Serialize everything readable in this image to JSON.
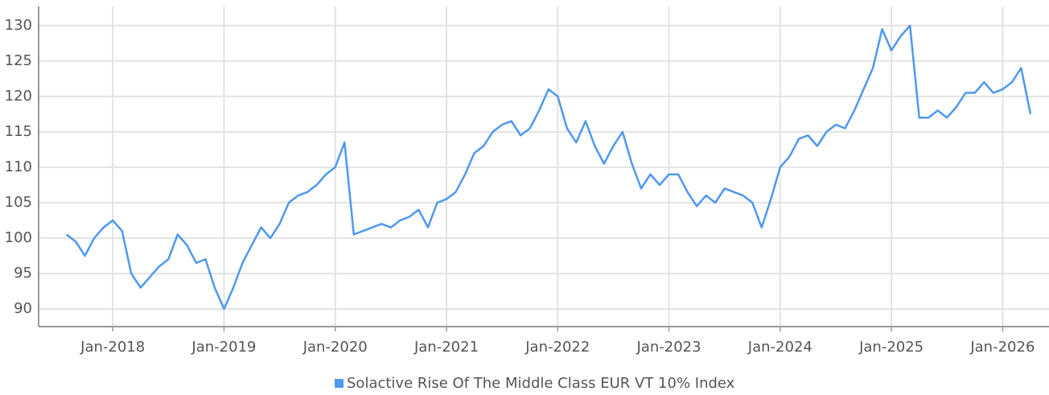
{
  "chart_data": {
    "type": "line",
    "x": [
      "2017-08",
      "2017-09",
      "2017-10",
      "2017-11",
      "2017-12",
      "2018-01",
      "2018-02",
      "2018-03",
      "2018-04",
      "2018-05",
      "2018-06",
      "2018-07",
      "2018-08",
      "2018-09",
      "2018-10",
      "2018-11",
      "2018-12",
      "2019-01",
      "2019-02",
      "2019-03",
      "2019-04",
      "2019-05",
      "2019-06",
      "2019-07",
      "2019-08",
      "2019-09",
      "2019-10",
      "2019-11",
      "2019-12",
      "2020-01",
      "2020-02",
      "2020-03",
      "2020-04",
      "2020-05",
      "2020-06",
      "2020-07",
      "2020-08",
      "2020-09",
      "2020-10",
      "2020-11",
      "2020-12",
      "2021-01",
      "2021-02",
      "2021-03",
      "2021-04",
      "2021-05",
      "2021-06",
      "2021-07",
      "2021-08",
      "2021-09",
      "2021-10",
      "2021-11",
      "2021-12",
      "2022-01",
      "2022-02",
      "2022-03",
      "2022-04",
      "2022-05",
      "2022-06",
      "2022-07",
      "2022-08",
      "2022-09",
      "2022-10",
      "2022-11",
      "2022-12",
      "2023-01",
      "2023-02",
      "2023-03",
      "2023-04",
      "2023-05",
      "2023-06",
      "2023-07",
      "2023-08",
      "2023-09",
      "2023-10",
      "2023-11",
      "2023-12",
      "2024-01",
      "2024-02",
      "2024-03",
      "2024-04",
      "2024-05",
      "2024-06",
      "2024-07",
      "2024-08",
      "2024-09",
      "2024-10",
      "2024-11",
      "2024-12",
      "2025-01",
      "2025-02",
      "2025-03",
      "2025-04",
      "2025-05",
      "2025-06",
      "2025-07",
      "2025-08",
      "2025-09",
      "2025-10",
      "2025-11",
      "2025-12",
      "2026-01",
      "2026-02",
      "2026-03",
      "2026-04"
    ],
    "series": [
      {
        "name": "Solactive Rise Of The Middle Class EUR VT 10% Index",
        "color": "#4f98f0",
        "values": [
          100.5,
          99.5,
          97.5,
          100,
          101.5,
          102.5,
          101,
          95,
          93,
          94.5,
          96,
          97,
          100.5,
          99,
          96.5,
          97,
          93,
          90,
          93,
          96.5,
          99,
          101.5,
          100,
          102,
          105,
          106,
          106.5,
          107.5,
          109,
          110,
          113.5,
          100.5,
          101,
          101.5,
          102,
          101.5,
          102.5,
          103,
          104,
          101.5,
          105,
          105.5,
          106.5,
          109,
          112,
          113,
          115,
          116,
          116.5,
          114.5,
          115.5,
          118,
          121,
          120,
          115.5,
          113.5,
          116.5,
          113,
          110.5,
          113,
          115,
          110.5,
          107,
          109,
          107.5,
          109,
          109,
          106.5,
          104.5,
          106,
          105,
          107,
          106.5,
          106,
          105,
          101.5,
          105.5,
          110,
          111.5,
          114,
          114.5,
          113,
          115,
          116,
          115.5,
          118,
          121,
          124,
          129.5,
          126.5,
          128.5,
          130,
          117,
          117,
          118,
          117,
          118.5,
          120.5,
          120.5,
          122,
          120.5,
          121,
          122,
          124,
          117.5
        ]
      }
    ],
    "xlim": [
      "2017-05",
      "2026-06"
    ],
    "xticks": [
      {
        "value": "2018-01",
        "label": "Jan-2018"
      },
      {
        "value": "2019-01",
        "label": "Jan-2019"
      },
      {
        "value": "2020-01",
        "label": "Jan-2020"
      },
      {
        "value": "2021-01",
        "label": "Jan-2021"
      },
      {
        "value": "2022-01",
        "label": "Jan-2022"
      },
      {
        "value": "2023-01",
        "label": "Jan-2023"
      },
      {
        "value": "2024-01",
        "label": "Jan-2024"
      },
      {
        "value": "2025-01",
        "label": "Jan-2025"
      },
      {
        "value": "2026-01",
        "label": "Jan-2026"
      }
    ],
    "ylim": [
      87.5,
      132.7
    ],
    "yticks": [
      90,
      95,
      100,
      105,
      110,
      115,
      120,
      125,
      130
    ],
    "grid": true,
    "legend": "bottom"
  }
}
